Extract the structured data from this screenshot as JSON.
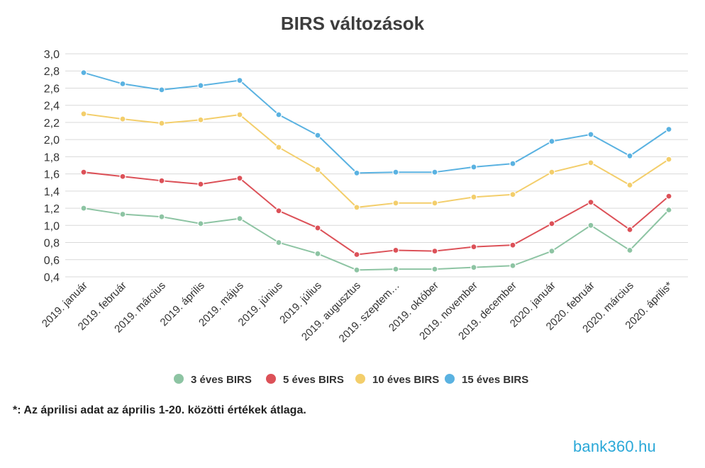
{
  "chart_data": {
    "type": "line",
    "title": "BIRS változások",
    "xlabel": "",
    "ylabel": "",
    "ylim": [
      0.4,
      3.0
    ],
    "yticks": [
      "0,4",
      "0,6",
      "0,8",
      "1,0",
      "1,2",
      "1,4",
      "1,6",
      "1,8",
      "2,0",
      "2,2",
      "2,4",
      "2,6",
      "2,8",
      "3,0"
    ],
    "grid": true,
    "legend_position": "bottom",
    "categories": [
      "2019. január",
      "2019. február",
      "2019. március",
      "2019. április",
      "2019. május",
      "2019. június",
      "2019. július",
      "2019. augusztus",
      "2019. szeptem…",
      "2019. október",
      "2019. november",
      "2019. december",
      "2020. január",
      "2020. február",
      "2020. március",
      "2020. április*"
    ],
    "series": [
      {
        "name": "3 éves BIRS",
        "color": "#8dc4a3",
        "values": [
          1.2,
          1.13,
          1.1,
          1.02,
          1.08,
          0.8,
          0.67,
          0.48,
          0.49,
          0.49,
          0.51,
          0.53,
          0.7,
          1.0,
          0.71,
          1.18
        ]
      },
      {
        "name": "5 éves BIRS",
        "color": "#dc5158",
        "values": [
          1.62,
          1.57,
          1.52,
          1.48,
          1.55,
          1.17,
          0.97,
          0.66,
          0.71,
          0.7,
          0.75,
          0.77,
          1.02,
          1.27,
          0.95,
          1.34
        ]
      },
      {
        "name": "10 éves BIRS",
        "color": "#f3ce6b",
        "values": [
          2.3,
          2.24,
          2.19,
          2.23,
          2.29,
          1.91,
          1.65,
          1.21,
          1.26,
          1.26,
          1.33,
          1.36,
          1.62,
          1.73,
          1.47,
          1.77
        ]
      },
      {
        "name": "15 éves BIRS",
        "color": "#5ab2e1",
        "values": [
          2.78,
          2.65,
          2.58,
          2.63,
          2.69,
          2.29,
          2.05,
          1.61,
          1.62,
          1.62,
          1.68,
          1.72,
          1.98,
          2.06,
          1.81,
          2.12
        ]
      }
    ]
  },
  "footnote": "*: Az áprilisi adat az április 1-20. közötti értékek átlaga.",
  "logo_text": "bank360.hu"
}
